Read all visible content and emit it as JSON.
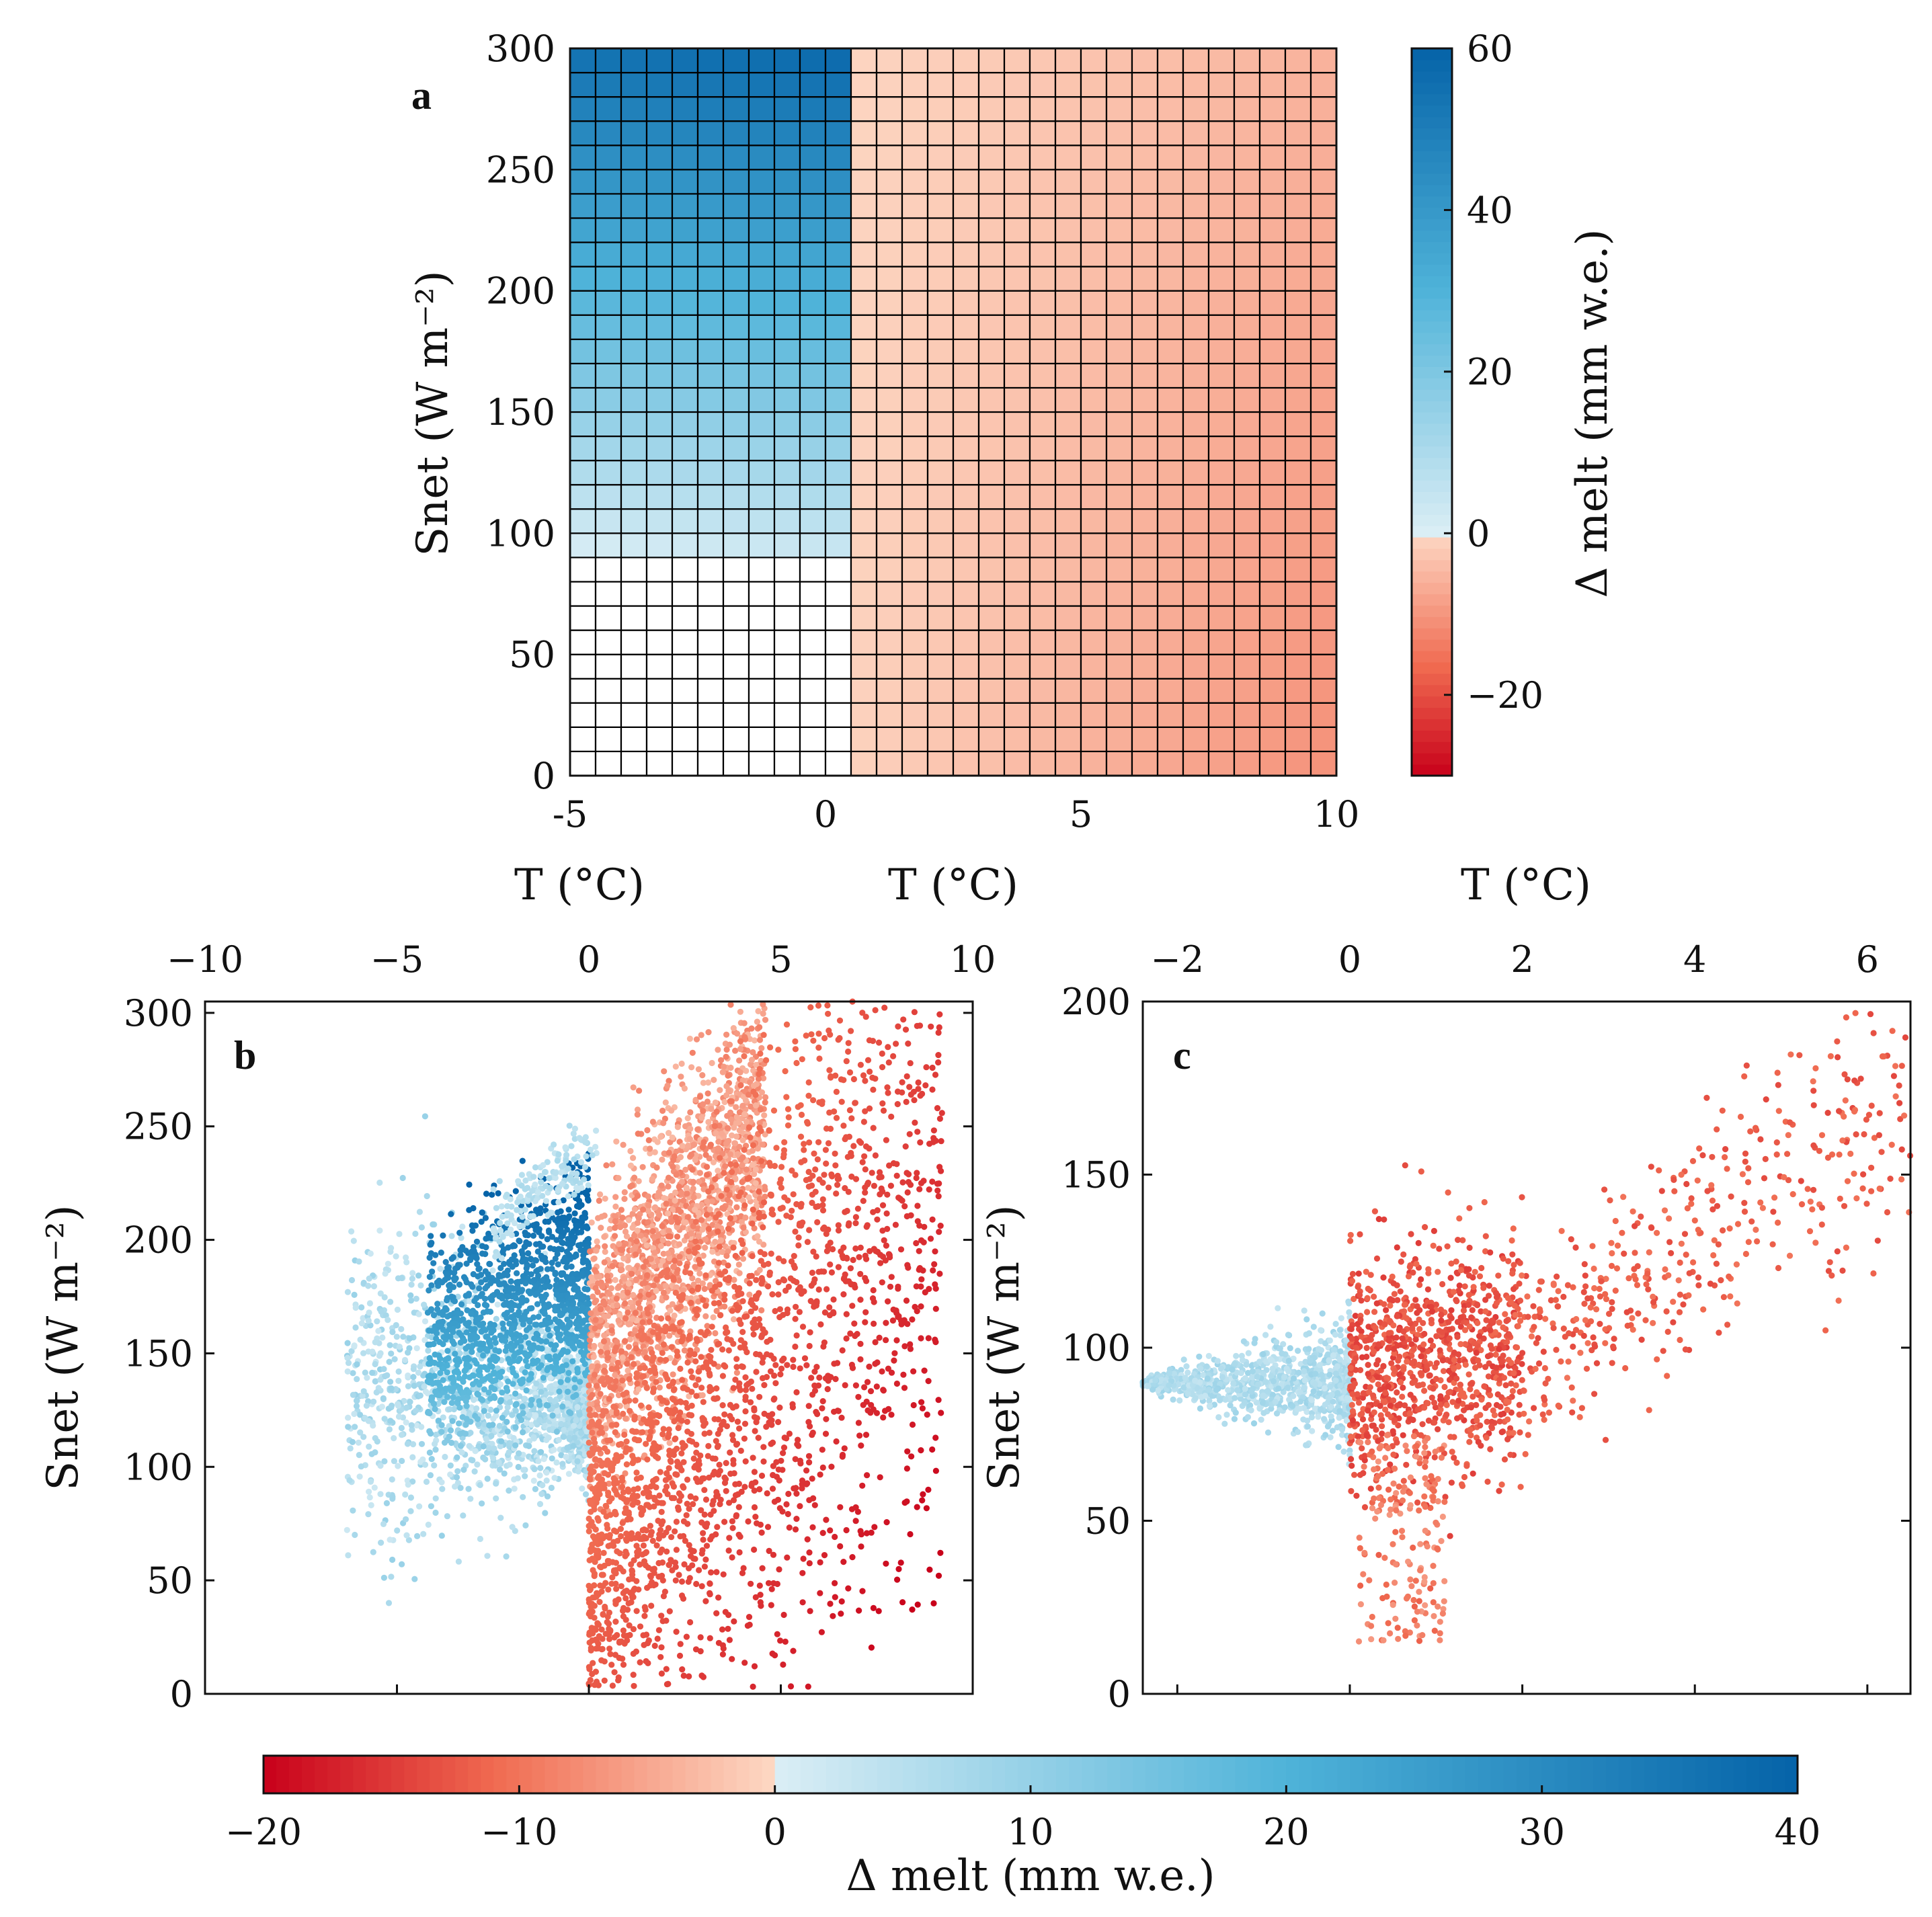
{
  "chart_data": [
    {
      "panel": "a",
      "type": "heatmap",
      "xlabel": "T (°C)",
      "ylabel": "Snet (W m⁻²)",
      "xlim": [
        -5,
        10
      ],
      "ylim": [
        0,
        300
      ],
      "xticks": [
        "-5",
        "0",
        "5",
        "10"
      ],
      "yticks": [
        "0",
        "50",
        "100",
        "150",
        "200",
        "250",
        "300"
      ],
      "grid_columns": 30,
      "grid_rows": 30,
      "cell_size_T": 0.5,
      "cell_size_Snet": 10,
      "value_model": "Δmelt ≈ -0.002·T·(600 - Snet) for T > 0.5 (range ≈ -25…0); ≈ max(0, 0.26·(Snet - 90)) for T ≤ 0.5 (range 0…55)",
      "colorbar": {
        "label": "Δ melt (mm w.e.)",
        "range": [
          -30,
          60
        ],
        "ticks": [
          "60",
          "40",
          "20",
          "0",
          "−20"
        ]
      }
    },
    {
      "panel": "b",
      "type": "scatter",
      "xlabel": "T (°C)",
      "ylabel": "Snet (W m⁻²)",
      "xlim": [
        -10,
        10
      ],
      "ylim": [
        0,
        305
      ],
      "xticks": [
        "−10",
        "−5",
        "0",
        "5",
        "10"
      ],
      "yticks": [
        "0",
        "50",
        "100",
        "150",
        "200",
        "250",
        "300"
      ],
      "n_points_approx": 5000,
      "clusters": [
        {
          "T_range": [
            -6.5,
            0
          ],
          "Snet_range": [
            70,
            185
          ],
          "delta_melt": "0 to 10"
        },
        {
          "T_range": [
            -4.5,
            0
          ],
          "Snet_range": [
            110,
            222
          ],
          "delta_melt": "10 to 40"
        },
        {
          "T_range": [
            0,
            4
          ],
          "Snet_range": [
            70,
            260
          ],
          "delta_melt": "-10 to 0"
        },
        {
          "T_range": [
            0,
            9
          ],
          "Snet_range": [
            25,
            300
          ],
          "delta_melt": "-20 to -5"
        }
      ]
    },
    {
      "panel": "c",
      "type": "scatter",
      "xlabel": "T (°C)",
      "ylabel": "Snet (W m⁻²)",
      "xlim": [
        -2.4,
        6.5
      ],
      "ylim": [
        0,
        200
      ],
      "xticks": [
        "−2",
        "0",
        "2",
        "4",
        "6"
      ],
      "yticks": [
        "0",
        "50",
        "100",
        "150",
        "200"
      ],
      "n_points_approx": 1500,
      "clusters": [
        {
          "T_range": [
            -2.4,
            0
          ],
          "Snet_range": [
            70,
            110
          ],
          "delta_melt": "0 to 10"
        },
        {
          "T_range": [
            0,
            6.5
          ],
          "Snet_range": [
            14,
            187
          ],
          "delta_melt": "-15 to -5"
        }
      ]
    }
  ],
  "panel_letters": [
    "a",
    "b",
    "c"
  ],
  "axis_titles": {
    "top_T_a": "T (°C)",
    "top_T_b": "T (°C)",
    "top_T_c": "T (°C)",
    "ylabel_a": "Snet (W m⁻²)",
    "ylabel_b": "Snet (W m⁻²)",
    "ylabel_c": "Snet (W m⁻²)"
  },
  "bottom_colorbar": {
    "label": "Δ melt (mm w.e.)",
    "range": [
      -20,
      40
    ],
    "ticks": [
      "−20",
      "−10",
      "0",
      "10",
      "20",
      "30",
      "40"
    ]
  },
  "colors": {
    "neg_dark": "#c8001a",
    "neg_mid": "#f06a50",
    "neg_light": "#fdd8c4",
    "white": "#ffffff",
    "pos_light": "#dbeef5",
    "pos_mid": "#4fb3d9",
    "pos_dark": "#0563a8"
  }
}
